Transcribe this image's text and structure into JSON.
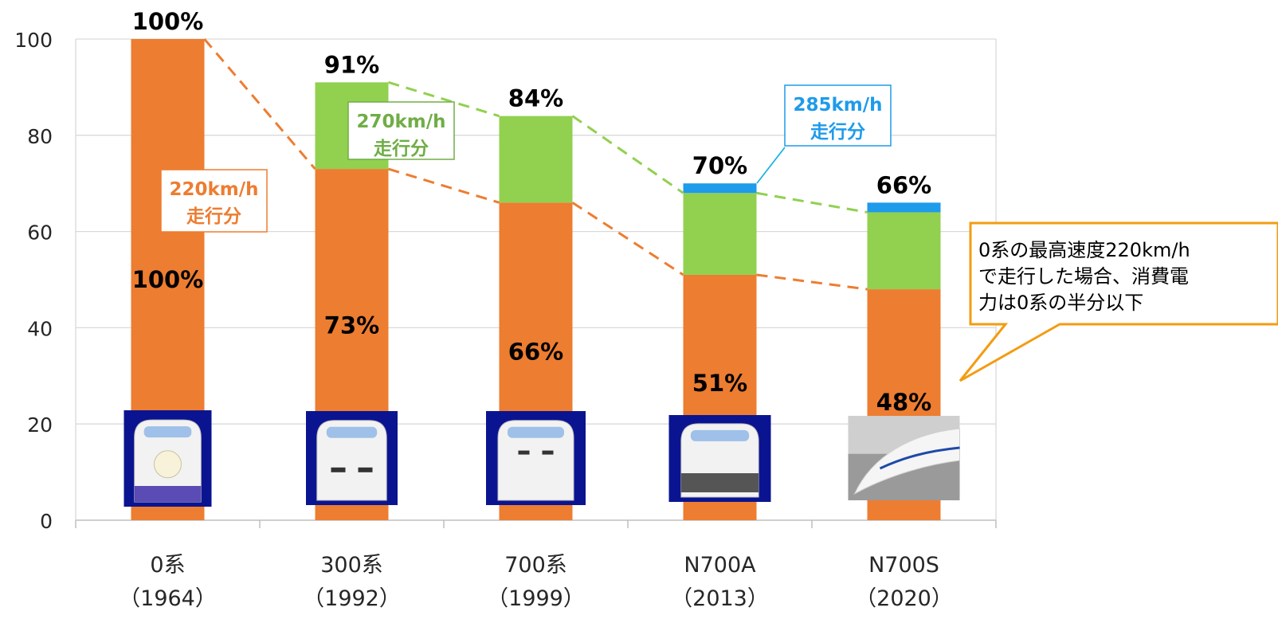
{
  "chart_data": {
    "type": "bar",
    "stacked": true,
    "categories": [
      "0系",
      "300系",
      "700系",
      "N700A",
      "N700S"
    ],
    "category_years": [
      "（1964）",
      "（1992）",
      "（1999）",
      "（2013）",
      "（2020）"
    ],
    "series": [
      {
        "name": "220km/h\n走行分",
        "color": "#ed7d31",
        "values": [
          100,
          73,
          66,
          51,
          48
        ]
      },
      {
        "name": "270km/h\n走行分",
        "color": "#92d050",
        "values": [
          0,
          18,
          18,
          17,
          16
        ]
      },
      {
        "name": "285km/h\n走行分",
        "color": "#1e9bea",
        "values": [
          0,
          0,
          0,
          2,
          2
        ]
      }
    ],
    "totals": [
      100,
      91,
      84,
      70,
      66
    ],
    "total_labels": [
      "100%",
      "91%",
      "84%",
      "70%",
      "66%"
    ],
    "inner_labels": [
      "100%",
      "73%",
      "66%",
      "51%",
      "48%"
    ],
    "ylim": [
      0,
      100
    ],
    "yticks": [
      0,
      20,
      40,
      60,
      80,
      100
    ],
    "grid": true,
    "legend": "none",
    "title": "",
    "xlabel": "",
    "ylabel": ""
  },
  "callout_lines": [
    "0系の最高速度220km/h",
    "で走行した場合、消費電",
    "力は0系の半分以下"
  ],
  "callout_color": "#f39c12",
  "train_icons": [
    "train-0-series-icon",
    "train-300-series-icon",
    "train-700-series-icon",
    "train-n700a-icon",
    "train-n700s-icon"
  ]
}
